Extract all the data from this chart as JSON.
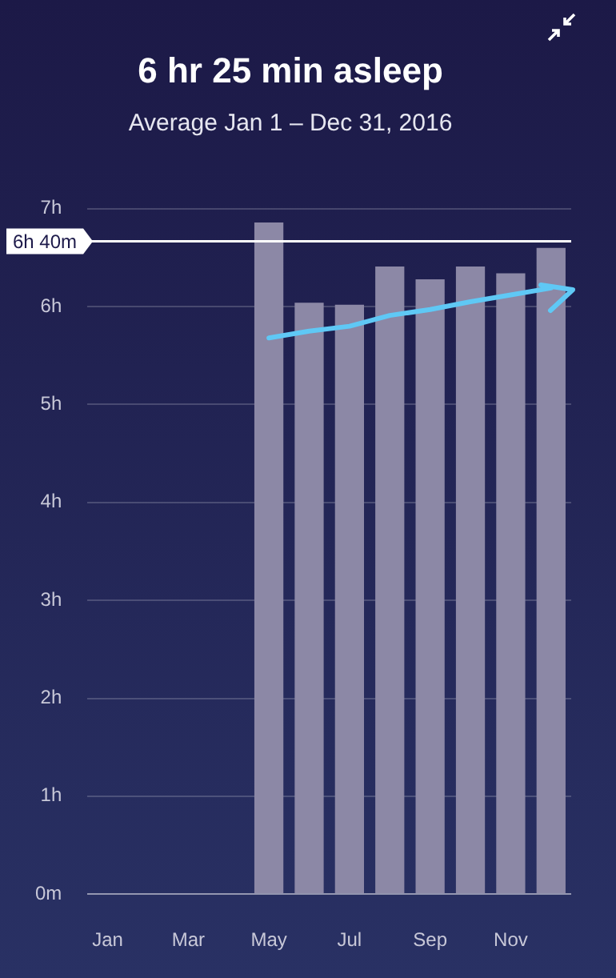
{
  "chart_data": {
    "type": "bar",
    "title": "6 hr 25 min asleep",
    "subtitle": "Average Jan 1 – Dec 31, 2016",
    "categories": [
      "Jan",
      null,
      "Mar",
      null,
      "May",
      null,
      "Jul",
      null,
      "Sep",
      null,
      "Nov",
      null
    ],
    "series": [
      {
        "color": "#8c88a6",
        "values": [
          null,
          null,
          null,
          null,
          6.86,
          6.04,
          6.02,
          6.41,
          6.28,
          6.41,
          6.34,
          6.6
        ]
      },
      {
        "type": "line",
        "color": "#5fc8f5",
        "values": [
          null,
          null,
          null,
          null,
          5.68,
          5.75,
          5.8,
          5.91,
          5.97,
          6.05,
          6.12,
          6.19
        ]
      }
    ],
    "ylim": [
      0,
      7
    ],
    "yticks": [
      {
        "value": 0,
        "label": "0m"
      },
      {
        "value": 1,
        "label": "1h"
      },
      {
        "value": 2,
        "label": "2h"
      },
      {
        "value": 3,
        "label": "3h"
      },
      {
        "value": 4,
        "label": "4h"
      },
      {
        "value": 5,
        "label": "5h"
      },
      {
        "value": 6,
        "label": "6h"
      },
      {
        "value": 7,
        "label": "7h"
      }
    ],
    "grid": "y",
    "legend": false,
    "ref_lines": [
      {
        "axis": "y",
        "value": 6.667,
        "label": "6h 40m",
        "color": "#ffffff"
      }
    ]
  }
}
